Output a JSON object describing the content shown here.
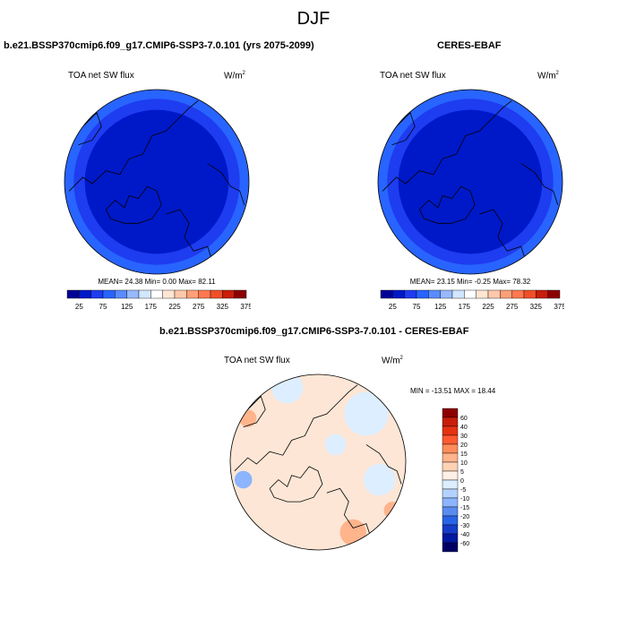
{
  "title": "DJF",
  "panels": [
    {
      "id": "model",
      "case_title": "b.e21.BSSP370cmip6.f09_g17.CMIP6-SSP3-7.0.101 (yrs 2075-2099)",
      "variable": "TOA net SW flux",
      "units_base": "W/m",
      "units_exp": "2",
      "stats": {
        "mean": "24.38",
        "min": "0.00",
        "max": "82.11"
      },
      "stats_text": "MEAN=  24.38  Min=   0.00  Max=  82.11"
    },
    {
      "id": "obs",
      "case_title": "CERES-EBAF",
      "variable": "TOA net SW flux",
      "units_base": "W/m",
      "units_exp": "2",
      "stats": {
        "mean": "23.15",
        "min": "-0.25",
        "max": "78.32"
      },
      "stats_text": "MEAN=  23.15  Min=  -0.25  Max=  78.32"
    },
    {
      "id": "diff",
      "case_title": "b.e21.BSSP370cmip6.f09_g17.CMIP6-SSP3-7.0.101 - CERES-EBAF",
      "variable": "TOA net SW flux",
      "units_base": "W/m",
      "units_exp": "2",
      "stats": {
        "min": "-13.51",
        "max": "18.44"
      },
      "stats_text": "MIN = -13.51 MAX =  18.44"
    }
  ],
  "colorbar_abs": {
    "colors": [
      "#000096",
      "#0019c8",
      "#1e3cf0",
      "#2864ff",
      "#5a8cff",
      "#96b9ff",
      "#d2e6ff",
      "#ffffff",
      "#ffe6d2",
      "#ffc8aa",
      "#ffa078",
      "#ff7850",
      "#f05028",
      "#c81e0a",
      "#8c0000"
    ],
    "tick_labels": [
      "25",
      "75",
      "125",
      "175",
      "225",
      "275",
      "325",
      "375"
    ]
  },
  "colorbar_diff": {
    "colors": [
      "#8c0000",
      "#c81e0a",
      "#e63214",
      "#ff5a32",
      "#ff8c5a",
      "#ffb48c",
      "#ffd2b4",
      "#fff0e6",
      "#dceeff",
      "#b4d2ff",
      "#8cb4ff",
      "#5a8cf0",
      "#2864e6",
      "#143cc8",
      "#0019a0",
      "#000064"
    ],
    "tick_labels": [
      "60",
      "40",
      "30",
      "20",
      "15",
      "10",
      "5",
      "0",
      "-5",
      "-10",
      "-15",
      "-20",
      "-30",
      "-40",
      "-60"
    ]
  },
  "map_colors": {
    "abs_fill": "#0019c8",
    "abs_ring": "#1e3cf0",
    "abs_outer_ring": "#2864ff",
    "diff_fill": "#fde6d6",
    "diff_warm": "#ffb48c",
    "diff_cool": "#dceeff",
    "diff_cooler": "#8cb4ff",
    "coast": "#000000"
  }
}
